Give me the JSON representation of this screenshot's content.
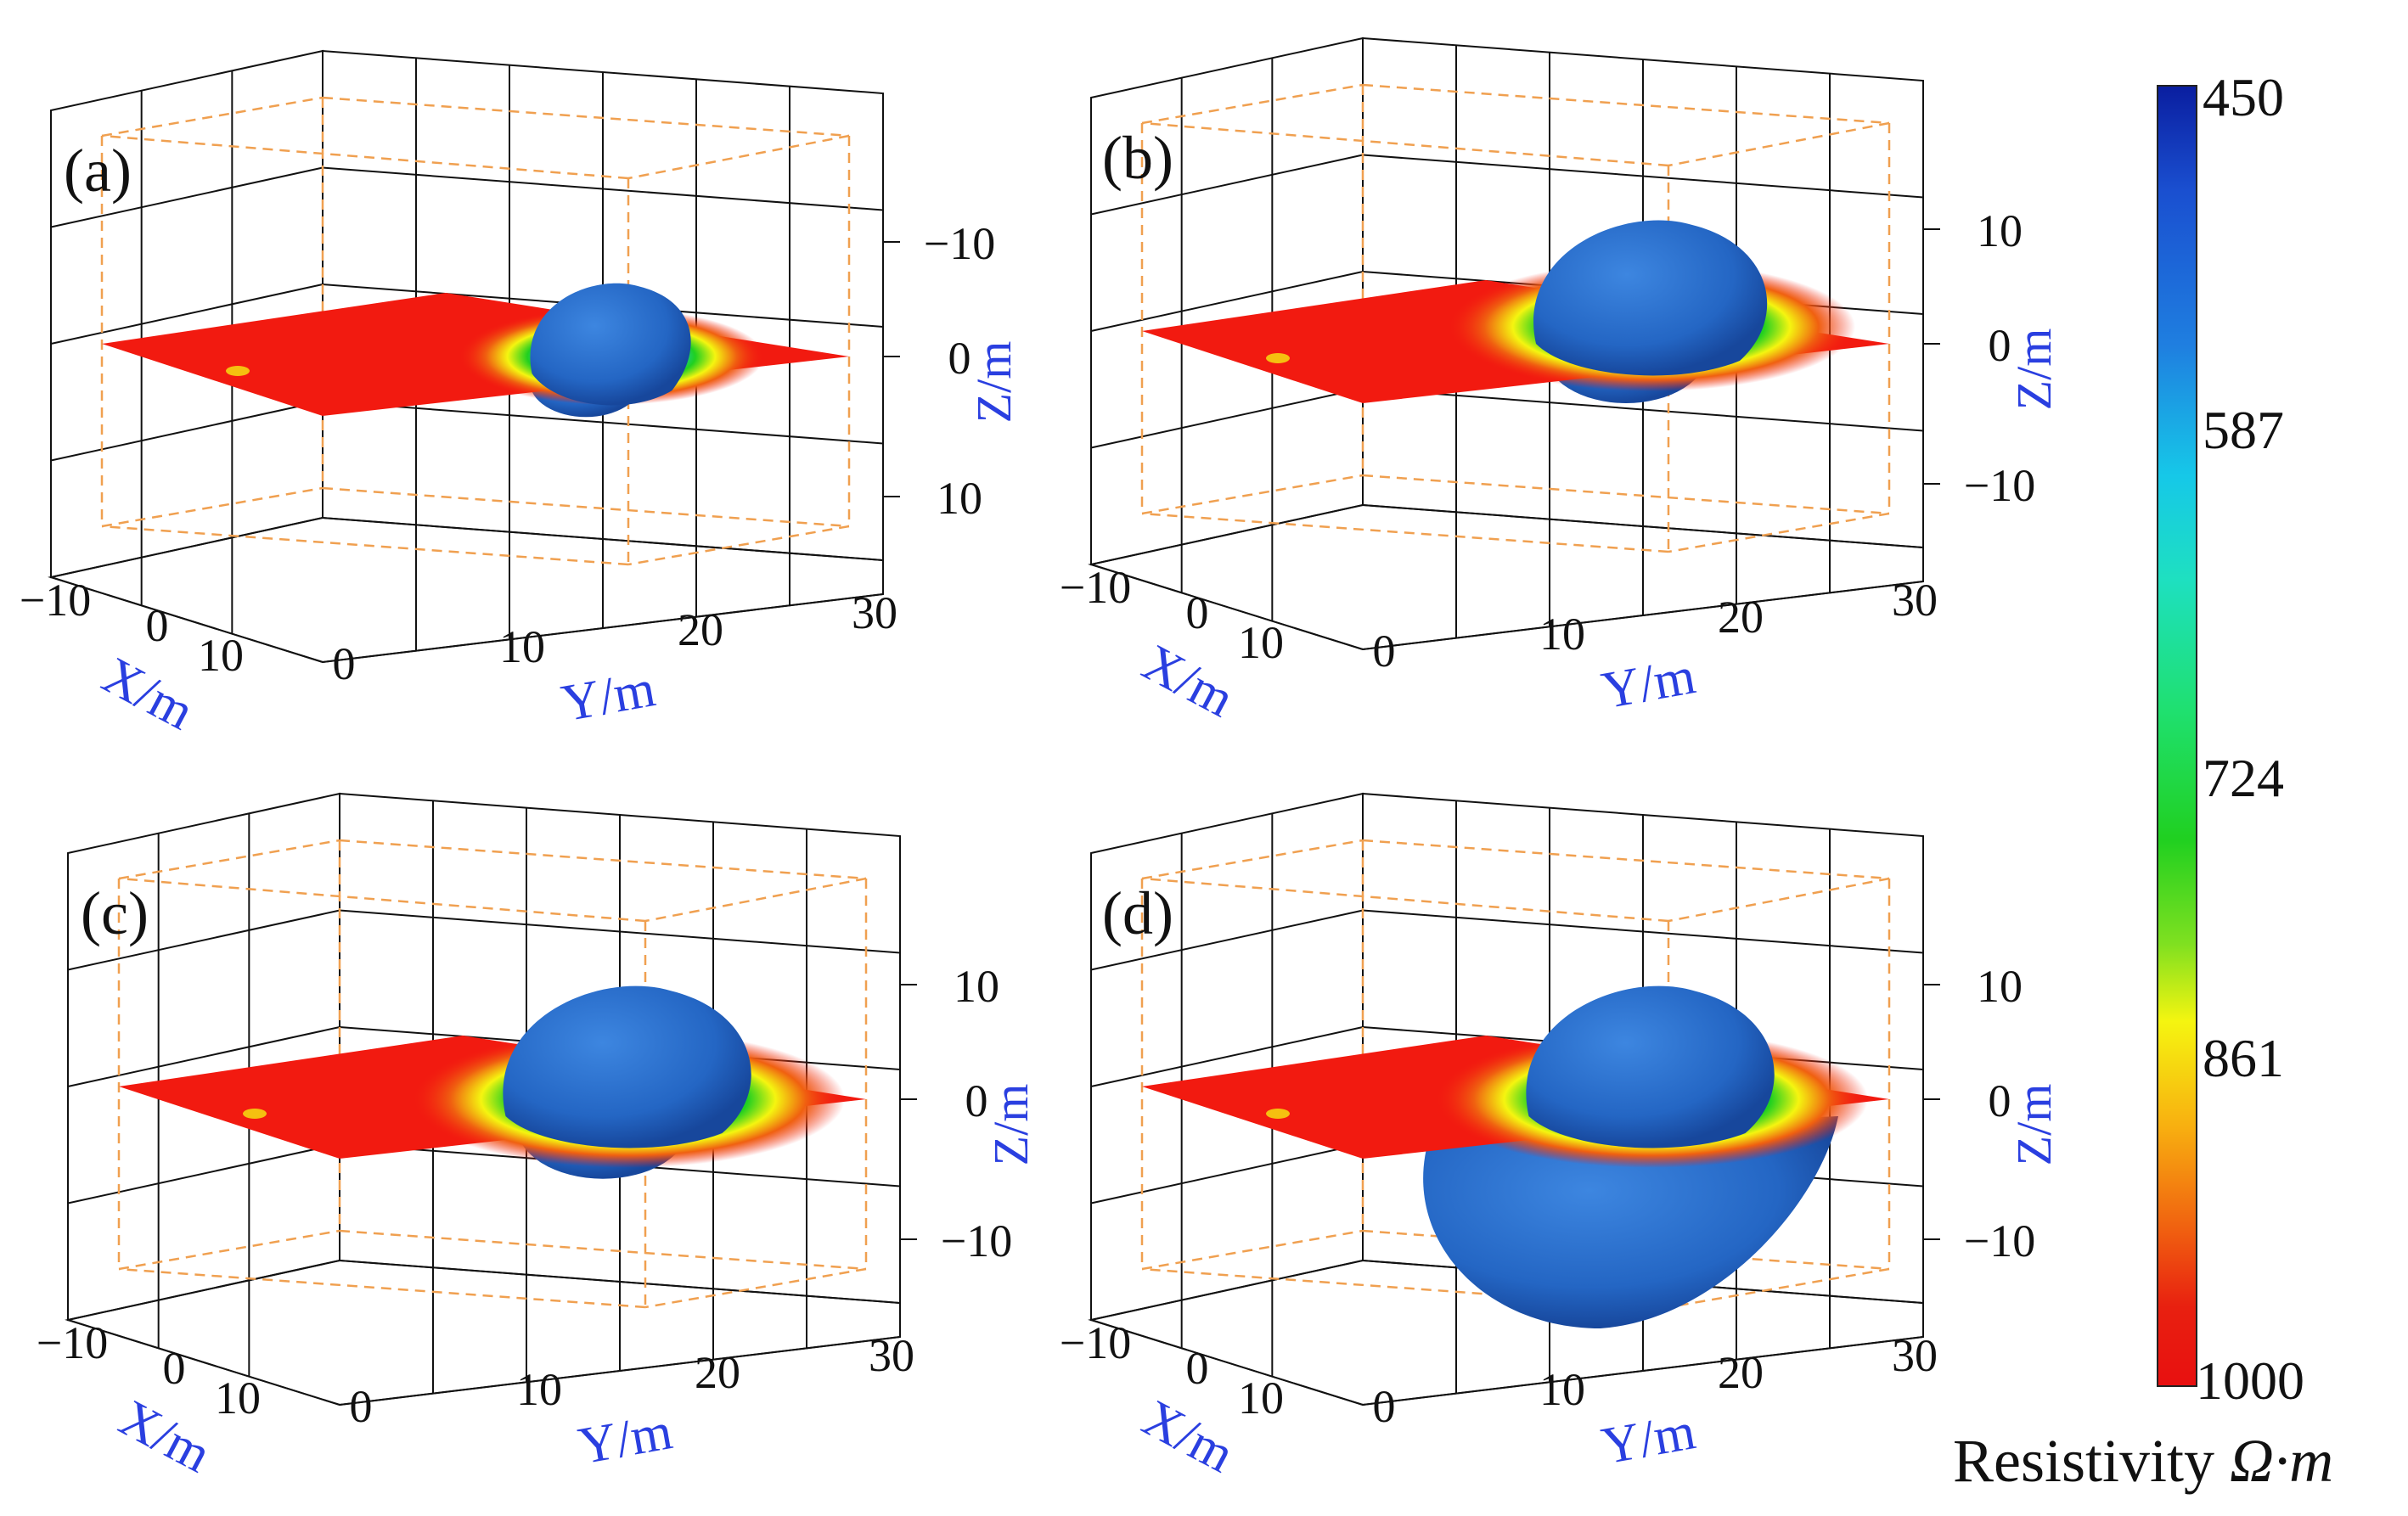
{
  "chart_data": [
    {
      "type": "3d-surface",
      "panel_label": "(a)",
      "xlabel": "X/m",
      "ylabel": "Y/m",
      "zlabel": "Z/m",
      "x_ticks": [
        "−10",
        "0",
        "10"
      ],
      "y_ticks": [
        "0",
        "10",
        "20",
        "30"
      ],
      "z_ticks": [
        "−10",
        "0",
        "10"
      ],
      "slice_z": 0,
      "anomaly": "low-resistivity body centred near slice"
    },
    {
      "type": "3d-surface",
      "panel_label": "(b)",
      "xlabel": "X/m",
      "ylabel": "Y/m",
      "zlabel": "Z/m",
      "x_ticks": [
        "−10",
        "0",
        "10"
      ],
      "y_ticks": [
        "0",
        "10",
        "20",
        "30"
      ],
      "z_ticks": [
        "10",
        "0",
        "−10"
      ],
      "slice_z": 0,
      "anomaly": "larger low-resistivity body above slice"
    },
    {
      "type": "3d-surface",
      "panel_label": "(c)",
      "xlabel": "X/m",
      "ylabel": "Y/m",
      "zlabel": "Z/m",
      "x_ticks": [
        "−10",
        "0",
        "10"
      ],
      "y_ticks": [
        "0",
        "10",
        "20",
        "30"
      ],
      "z_ticks": [
        "10",
        "0",
        "−10"
      ],
      "slice_z": 0,
      "anomaly": "low-resistivity body spanning slice"
    },
    {
      "type": "3d-surface",
      "panel_label": "(d)",
      "xlabel": "X/m",
      "ylabel": "Y/m",
      "zlabel": "Z/m",
      "x_ticks": [
        "−10",
        "0",
        "10"
      ],
      "y_ticks": [
        "0",
        "10",
        "20",
        "30"
      ],
      "z_ticks": [
        "10",
        "0",
        "−10"
      ],
      "slice_z": 0,
      "anomaly": "elongated low-resistivity body extending below slice"
    }
  ],
  "colorbar": {
    "title": "Resistivity",
    "unit": "Ω·m",
    "ticks": [
      "450",
      "587",
      "724",
      "861",
      "1000"
    ],
    "range": [
      450,
      1000
    ],
    "colors": {
      "low": "#0a1ea0",
      "cyan": "#16c8e8",
      "green": "#20d020",
      "yellow": "#f5f510",
      "orange": "#f06010",
      "high": "#e81010"
    }
  },
  "colors": {
    "axis_label": "#2a3fe0",
    "grid": "#111111",
    "box_dash": "#f0a050",
    "slice": "#f21a10",
    "body": "#2a6fd0",
    "body_shade": "#1a4fb0"
  }
}
